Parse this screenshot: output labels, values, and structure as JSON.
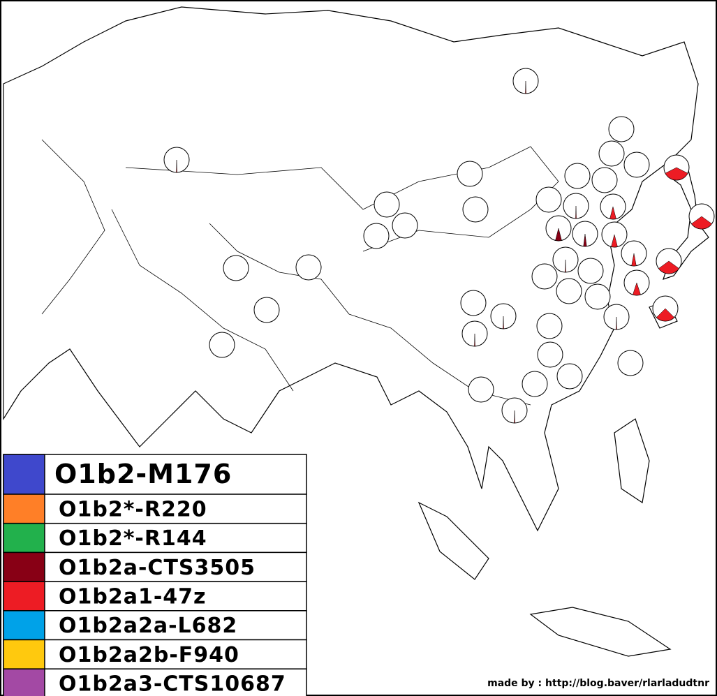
{
  "legend": {
    "items": [
      {
        "label": "O1b2-M176",
        "color": "#3f48cc"
      },
      {
        "label": "O1b2*-R220",
        "color": "#ff7f27"
      },
      {
        "label": "O1b2*-R144",
        "color": "#22b14c"
      },
      {
        "label": "O1b2a-CTS3505",
        "color": "#880015"
      },
      {
        "label": "O1b2a1-47z",
        "color": "#ed1c24"
      },
      {
        "label": "O1b2a2a-L682",
        "color": "#00a2e8"
      },
      {
        "label": "O1b2a2b-F940",
        "color": "#ffc90e"
      },
      {
        "label": "O1b2a3-CTS10687",
        "color": "#a349a4"
      }
    ]
  },
  "pies": [
    {
      "segments": [
        {
          "color": "#ed1c24",
          "value": 1
        }
      ]
    },
    {
      "segments": [
        {
          "color": "#ed1c24",
          "value": 1
        }
      ]
    },
    {
      "segments": [
        {
          "color": "#ed1c24",
          "value": 35
        }
      ]
    },
    {
      "segments": [
        {
          "color": "#ed1c24",
          "value": 30
        }
      ]
    },
    {
      "segments": [
        {
          "color": "#ed1c24",
          "value": 8
        }
      ]
    },
    {
      "segments": [
        {
          "color": "#880015",
          "value": 8
        }
      ]
    },
    {
      "segments": [
        {
          "color": "#880015",
          "value": 4
        }
      ]
    },
    {
      "segments": [
        {
          "color": "#ed1c24",
          "value": 8
        }
      ]
    },
    {
      "segments": [
        {
          "color": "#ed1c24",
          "value": 6
        }
      ]
    },
    {
      "segments": [
        {
          "color": "#ed1c24",
          "value": 30
        }
      ]
    },
    {
      "segments": [
        {
          "color": "#ed1c24",
          "value": 10
        }
      ]
    },
    {
      "segments": [
        {
          "color": "#ed1c24",
          "value": 25
        }
      ]
    },
    {
      "segments": [
        {
          "color": "#ed1c24",
          "value": 1
        }
      ]
    },
    {
      "segments": [
        {
          "color": "#ed1c24",
          "value": 1
        }
      ]
    },
    {
      "segments": [
        {
          "color": "#ed1c24",
          "value": 1
        }
      ]
    },
    {
      "segments": [
        {
          "color": "#ed1c24",
          "value": 1
        }
      ]
    },
    {
      "segments": [
        {
          "color": "#ed1c24",
          "value": 1
        }
      ]
    },
    {
      "segments": [
        {
          "color": "#ed1c24",
          "value": 1
        }
      ]
    },
    {
      "segments": []
    },
    {
      "segments": []
    },
    {
      "segments": []
    },
    {
      "segments": []
    },
    {
      "segments": []
    },
    {
      "segments": []
    },
    {
      "segments": []
    },
    {
      "segments": []
    },
    {
      "segments": []
    },
    {
      "segments": []
    },
    {
      "segments": []
    },
    {
      "segments": []
    },
    {
      "segments": []
    },
    {
      "segments": []
    },
    {
      "segments": []
    },
    {
      "segments": []
    },
    {
      "segments": []
    },
    {
      "segments": []
    },
    {
      "segments": []
    },
    {
      "segments": []
    },
    {
      "segments": []
    },
    {
      "segments": []
    },
    {
      "segments": []
    },
    {
      "segments": []
    },
    {
      "segments": []
    },
    {
      "segments": []
    }
  ],
  "credit": "made by : http://blog.baver/rlarladudtnr"
}
